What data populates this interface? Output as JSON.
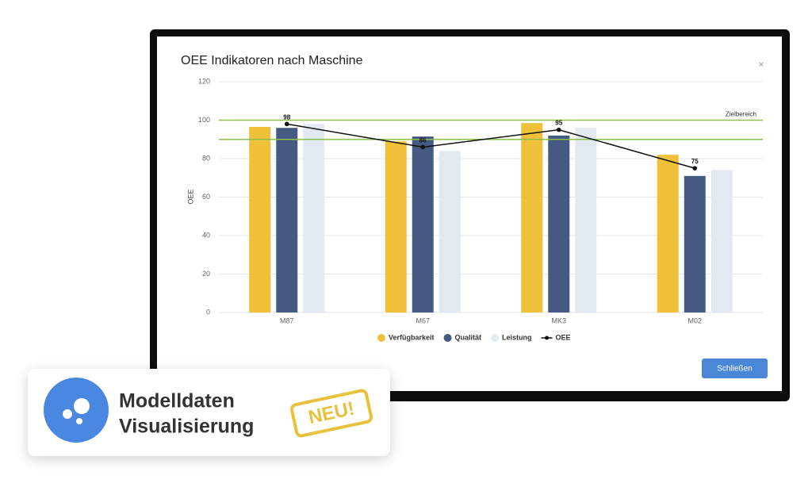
{
  "dialog": {
    "close": "×",
    "button": "Schließen"
  },
  "chart_data": {
    "type": "bar",
    "title": "OEE Indikatoren nach Maschine",
    "ylabel": "OEE",
    "categories": [
      "M87",
      "M67",
      "MK3",
      "M02"
    ],
    "series": [
      {
        "name": "Verfügbarkeit",
        "color": "#efc13a",
        "values": [
          96.5,
          89,
          98.5,
          82
        ]
      },
      {
        "name": "Qualität",
        "color": "#445a81",
        "values": [
          96,
          91.5,
          92,
          71
        ]
      },
      {
        "name": "Leistung",
        "color": "#e3e9f1",
        "values": [
          98,
          84,
          96,
          74
        ]
      },
      {
        "name": "OEE",
        "color": "#111111",
        "type": "line",
        "values": [
          98,
          86,
          95,
          75
        ]
      }
    ],
    "reference_lines": [
      {
        "value": 100,
        "label": "Zielbereich",
        "color": "#8cc04a"
      },
      {
        "value": 90,
        "color": "#8cc04a"
      }
    ],
    "ylim": [
      0,
      120
    ],
    "yticks": [
      0,
      20,
      40,
      60,
      80,
      100,
      120
    ],
    "grid": true,
    "legend": "bottom"
  },
  "badge": {
    "title_lines": [
      "Modelldaten",
      "Visualisierung"
    ],
    "tag": "NEU!"
  }
}
